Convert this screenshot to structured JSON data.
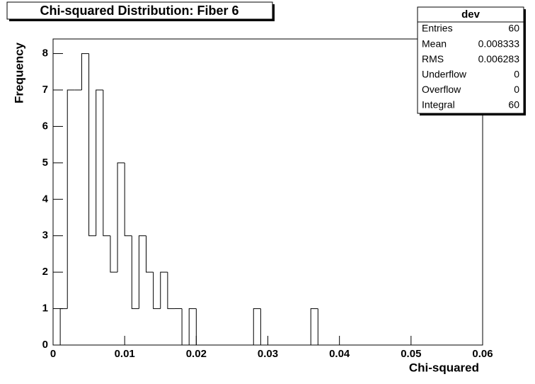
{
  "chart_data": {
    "type": "histogram",
    "title": "Chi-squared Distribution: Fiber 6",
    "xlabel": "Chi-squared",
    "ylabel": "Frequency",
    "bins": [
      0,
      0.001,
      0.002,
      0.003,
      0.004,
      0.005,
      0.006,
      0.007,
      0.008,
      0.009,
      0.01,
      0.011,
      0.012,
      0.013,
      0.014,
      0.015,
      0.016,
      0.017,
      0.018,
      0.019,
      0.02,
      0.021,
      0.022,
      0.023,
      0.024,
      0.025,
      0.026,
      0.027,
      0.028,
      0.029,
      0.03,
      0.031,
      0.032,
      0.033,
      0.034,
      0.035,
      0.036,
      0.037,
      0.038,
      0.039,
      0.04,
      0.041,
      0.042,
      0.043,
      0.044,
      0.045,
      0.046,
      0.047,
      0.048,
      0.049,
      0.05,
      0.051,
      0.052,
      0.053,
      0.054,
      0.055,
      0.056,
      0.057,
      0.058,
      0.059,
      0.06
    ],
    "counts": [
      0,
      1,
      7,
      7,
      8,
      3,
      7,
      3,
      2,
      5,
      3,
      1,
      3,
      2,
      1,
      2,
      1,
      1,
      0,
      1,
      0,
      0,
      0,
      0,
      0,
      0,
      0,
      0,
      1,
      0,
      0,
      0,
      0,
      0,
      0,
      0,
      1,
      0,
      0,
      0,
      0,
      0,
      0,
      0,
      0,
      0,
      0,
      0,
      0,
      0,
      0,
      0,
      0,
      0,
      0,
      0,
      0,
      0,
      0,
      0
    ],
    "color": "#000000",
    "xlim": [
      0,
      0.06
    ],
    "xticks": [
      0,
      0.01,
      0.02,
      0.03,
      0.04,
      0.05,
      0.06
    ],
    "ylim": [
      0,
      8.4
    ],
    "yticks": [
      0,
      1,
      2,
      3,
      4,
      5,
      6,
      7,
      8
    ],
    "stats": {
      "title": "dev",
      "rows": [
        {
          "label": "Entries",
          "value": 60
        },
        {
          "label": "Mean",
          "value": 0.008333
        },
        {
          "label": "RMS",
          "value": 0.006283
        },
        {
          "label": "Underflow",
          "value": 0
        },
        {
          "label": "Overflow",
          "value": 0
        },
        {
          "label": "Integral",
          "value": 60
        }
      ]
    }
  }
}
